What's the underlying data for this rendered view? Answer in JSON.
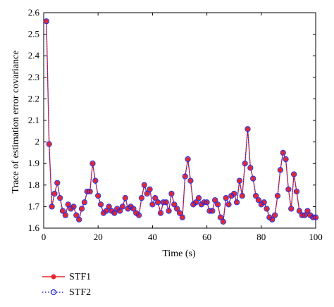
{
  "chart_data": {
    "type": "line",
    "xlabel": "Time (s)",
    "ylabel": "Trace of estimation error covariance",
    "xlim": [
      0,
      100
    ],
    "ylim": [
      1.6,
      2.6
    ],
    "x_ticks": [
      "0",
      "20",
      "40",
      "60",
      "80",
      "100"
    ],
    "y_ticks": [
      "1.6",
      "1.7",
      "1.8",
      "1.9",
      "2",
      "2.1",
      "2.2",
      "2.3",
      "2.4",
      "2.5",
      "2.6"
    ],
    "grid": false,
    "legend_position": "bottom-left",
    "x": [
      1,
      2,
      3,
      4,
      5,
      6,
      7,
      8,
      9,
      10,
      11,
      12,
      13,
      14,
      15,
      16,
      17,
      18,
      19,
      20,
      21,
      22,
      23,
      24,
      25,
      26,
      27,
      28,
      29,
      30,
      31,
      32,
      33,
      34,
      35,
      36,
      37,
      38,
      39,
      40,
      41,
      42,
      43,
      44,
      45,
      46,
      47,
      48,
      49,
      50,
      51,
      52,
      53,
      54,
      55,
      56,
      57,
      58,
      59,
      60,
      61,
      62,
      63,
      64,
      65,
      66,
      67,
      68,
      69,
      70,
      71,
      72,
      73,
      74,
      75,
      76,
      77,
      78,
      79,
      80,
      81,
      82,
      83,
      84,
      85,
      86,
      87,
      88,
      89,
      90,
      91,
      92,
      93,
      94,
      95,
      96,
      97,
      98,
      99,
      100
    ],
    "series": [
      {
        "name": "STF1",
        "color": "#e8232a",
        "values": [
          2.56,
          1.99,
          1.7,
          1.76,
          1.81,
          1.74,
          1.68,
          1.66,
          1.71,
          1.69,
          1.7,
          1.66,
          1.64,
          1.69,
          1.72,
          1.77,
          1.77,
          1.9,
          1.82,
          1.75,
          1.71,
          1.67,
          1.68,
          1.7,
          1.68,
          1.67,
          1.69,
          1.68,
          1.7,
          1.74,
          1.69,
          1.7,
          1.69,
          1.67,
          1.66,
          1.74,
          1.8,
          1.76,
          1.78,
          1.71,
          1.74,
          1.72,
          1.67,
          1.72,
          1.72,
          1.68,
          1.76,
          1.71,
          1.69,
          1.67,
          1.65,
          1.84,
          1.92,
          1.82,
          1.71,
          1.72,
          1.74,
          1.71,
          1.72,
          1.72,
          1.68,
          1.68,
          1.73,
          1.71,
          1.65,
          1.63,
          1.74,
          1.71,
          1.75,
          1.76,
          1.72,
          1.82,
          1.75,
          1.9,
          2.06,
          1.88,
          1.83,
          1.75,
          1.73,
          1.71,
          1.72,
          1.69,
          1.65,
          1.64,
          1.66,
          1.75,
          1.87,
          1.95,
          1.92,
          1.78,
          1.69,
          1.85,
          1.77,
          1.68,
          1.66,
          1.66,
          1.68,
          1.66,
          1.65,
          1.65
        ]
      },
      {
        "name": "STF2",
        "color": "#2b2bd6",
        "values": [
          2.56,
          1.99,
          1.7,
          1.76,
          1.81,
          1.74,
          1.68,
          1.66,
          1.71,
          1.69,
          1.7,
          1.66,
          1.64,
          1.69,
          1.72,
          1.77,
          1.77,
          1.9,
          1.82,
          1.75,
          1.71,
          1.67,
          1.68,
          1.7,
          1.68,
          1.67,
          1.69,
          1.68,
          1.7,
          1.74,
          1.69,
          1.7,
          1.69,
          1.67,
          1.66,
          1.74,
          1.8,
          1.76,
          1.78,
          1.71,
          1.74,
          1.72,
          1.67,
          1.72,
          1.72,
          1.68,
          1.76,
          1.71,
          1.69,
          1.67,
          1.65,
          1.84,
          1.92,
          1.82,
          1.71,
          1.72,
          1.74,
          1.71,
          1.72,
          1.72,
          1.68,
          1.68,
          1.73,
          1.71,
          1.65,
          1.63,
          1.74,
          1.71,
          1.75,
          1.76,
          1.72,
          1.82,
          1.75,
          1.9,
          2.06,
          1.88,
          1.83,
          1.75,
          1.73,
          1.71,
          1.72,
          1.69,
          1.65,
          1.64,
          1.66,
          1.75,
          1.87,
          1.95,
          1.92,
          1.78,
          1.69,
          1.85,
          1.77,
          1.68,
          1.66,
          1.66,
          1.68,
          1.66,
          1.65,
          1.65
        ]
      }
    ]
  }
}
